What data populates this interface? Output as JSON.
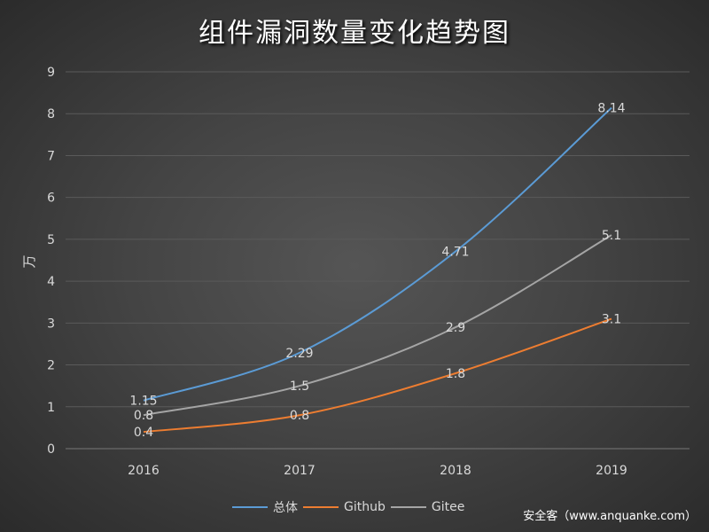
{
  "chart_data": {
    "type": "line",
    "title": "组件漏洞数量变化趋势图",
    "xlabel": "",
    "ylabel": "万",
    "ylim": [
      0,
      9
    ],
    "yticks": [
      0,
      1,
      2,
      3,
      4,
      5,
      6,
      7,
      8,
      9
    ],
    "grid": true,
    "legend_position": "bottom",
    "categories": [
      "2016",
      "2017",
      "2018",
      "2019"
    ],
    "series": [
      {
        "name": "总体",
        "color": "#5b9bd5",
        "values": [
          1.15,
          2.29,
          4.71,
          8.14
        ]
      },
      {
        "name": "Github",
        "color": "#ed7d31",
        "values": [
          0.4,
          0.8,
          1.8,
          3.1
        ]
      },
      {
        "name": "Gitee",
        "color": "#a5a5a5",
        "values": [
          0.8,
          1.5,
          2.9,
          5.1
        ]
      }
    ]
  },
  "watermark": "安全客（www.anquanke.com）"
}
